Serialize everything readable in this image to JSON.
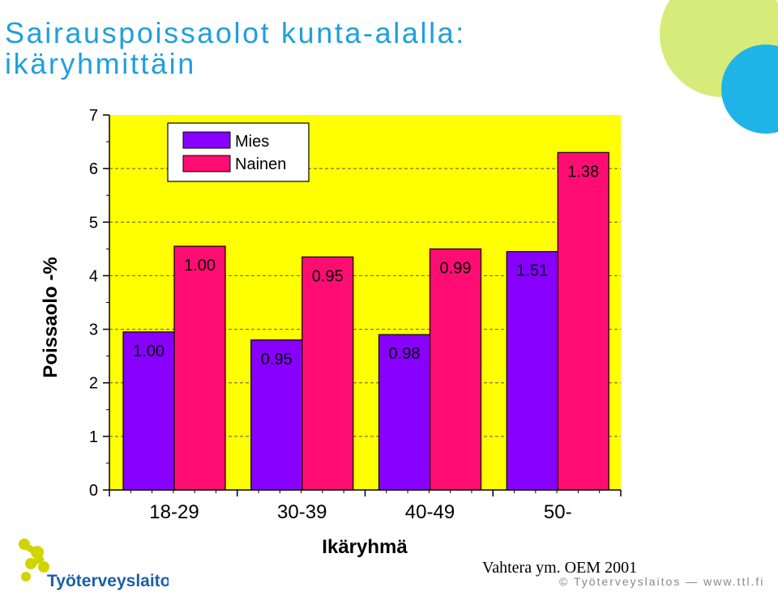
{
  "title_lines": [
    "Sairauspoissaolot kunta-alalla:",
    "ikäryhmittäin"
  ],
  "source": "Vahtera ym. OEM 2001",
  "footer": "© Työterveyslaitos — www.ttl.fi",
  "logo_text": "Työterveyslaitos",
  "colors": {
    "title": "#1f9fde",
    "plot_background": "#ffff00",
    "mies": "#8800ff",
    "nainen": "#ff0d73",
    "deco_green": "#d7eb7a",
    "deco_blue": "#1eb4e8",
    "logo_yellow": "#d2d400",
    "logo_blue": "#1b5fa8"
  },
  "chart_data": {
    "type": "bar",
    "xlabel": "Ikäryhmä",
    "ylabel": "Poissaolo -%",
    "ylim": [
      0,
      7
    ],
    "yticks": [
      0,
      1,
      2,
      3,
      4,
      5,
      6,
      7
    ],
    "grid": "dashed horizontal",
    "legend_position": "top-left",
    "categories": [
      "18-29",
      "30-39",
      "40-49",
      "50-"
    ],
    "series": [
      {
        "name": "Mies",
        "values": [
          2.95,
          2.8,
          2.9,
          4.45
        ],
        "labels": [
          "1.00",
          "0.95",
          "0.98",
          "1.51"
        ]
      },
      {
        "name": "Nainen",
        "values": [
          4.55,
          4.35,
          4.5,
          6.3
        ],
        "labels": [
          "1.00",
          "0.95",
          "0.99",
          "1.38"
        ]
      }
    ]
  }
}
